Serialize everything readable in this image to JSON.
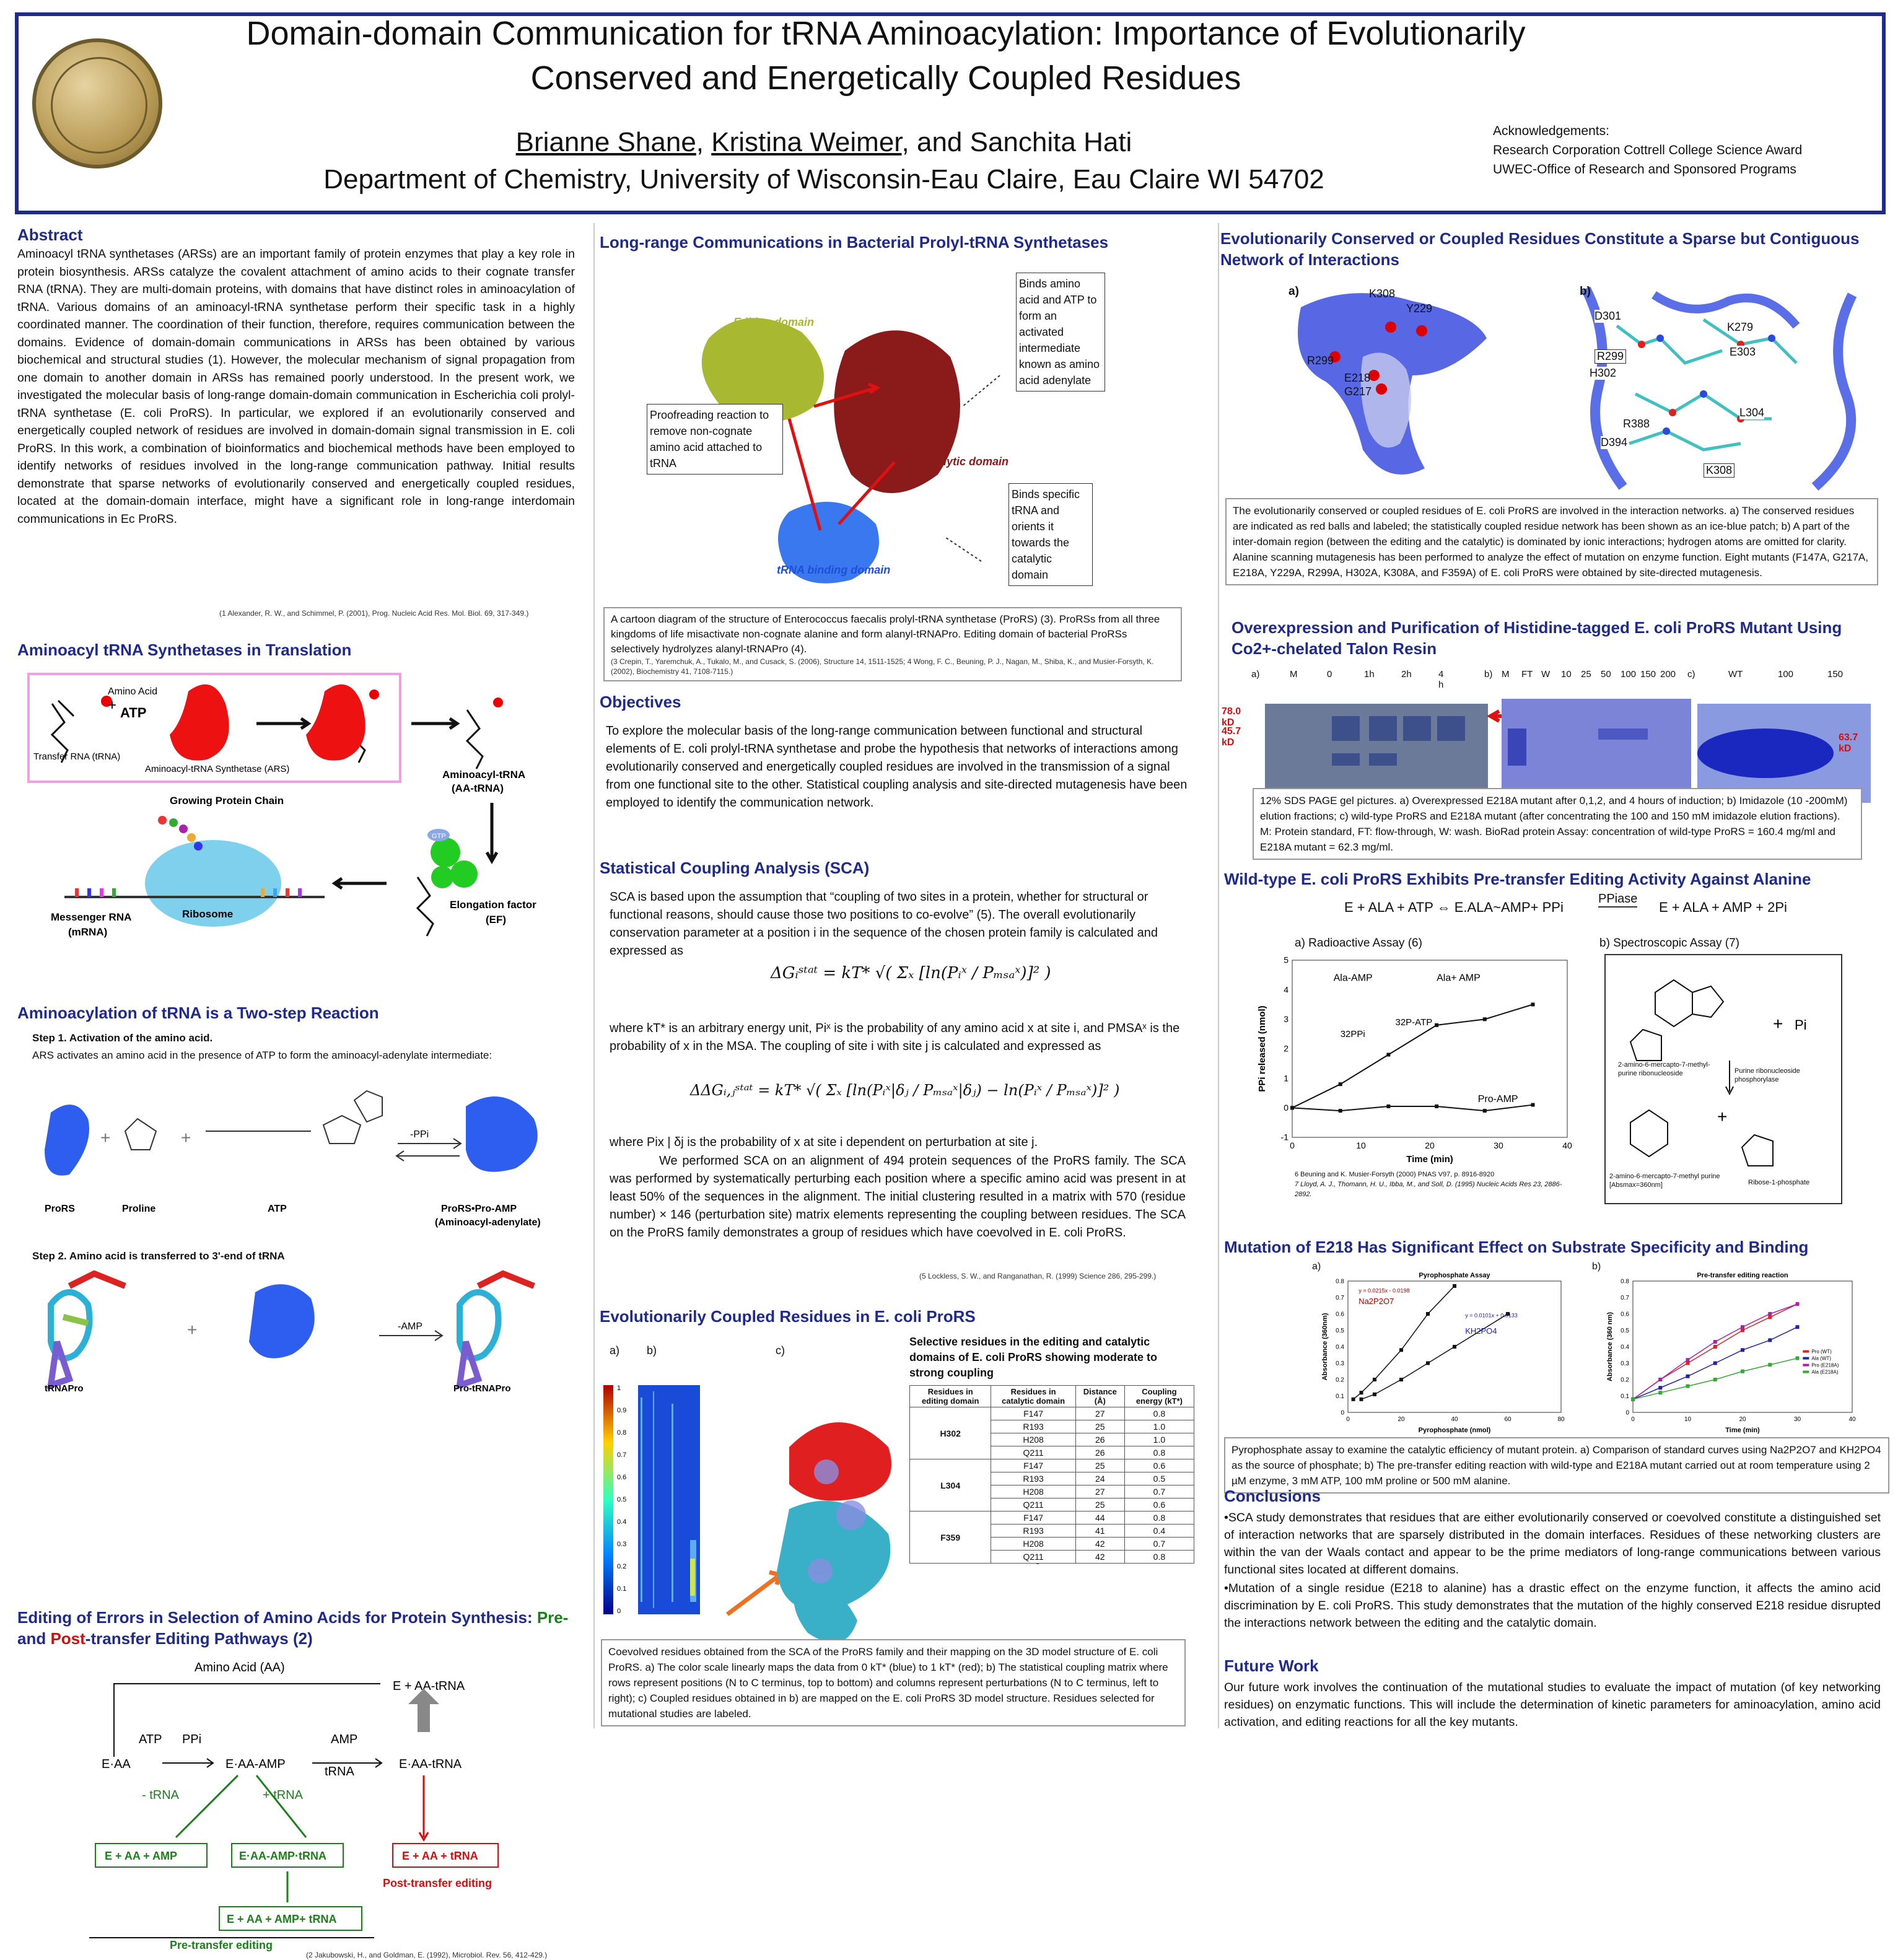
{
  "header": {
    "title": "Domain-domain Communication for tRNA Aminoacylation: Importance of Evolutionarily Conserved and Energetically Coupled Residues",
    "author1": "Brianne Shane",
    "author2": "Kristina Weimer",
    "author3": ", and Sanchita Hati",
    "affiliation": "Department of Chemistry, University of Wisconsin-Eau Claire, Eau Claire WI 54702",
    "ack_title": "Acknowledgements:",
    "ack1": "Research Corporation Cottrell College Science Award",
    "ack2": "UWEC-Office of Research and Sponsored Programs"
  },
  "abstract": {
    "heading": "Abstract",
    "text": "Aminoacyl tRNA synthetases (ARSs) are an important family of protein enzymes that play a key role in protein biosynthesis. ARSs catalyze the covalent attachment of amino acids to their cognate transfer RNA (tRNA). They are multi-domain proteins, with domains that have distinct roles in aminoacylation of tRNA. Various domains of an aminoacyl-tRNA synthetase perform their specific task in a highly coordinated manner. The coordination of their function, therefore, requires communication between the domains. Evidence of domain-domain communications in ARSs has been obtained by various biochemical and structural studies (1). However, the molecular mechanism of signal propagation from one domain to another domain in ARSs has remained poorly understood. In the present work, we investigated the molecular basis of long-range domain-domain communication in Escherichia coli prolyl-tRNA synthetase (E. coli ProRS). In particular, we explored if an evolutionarily conserved and energetically coupled network of residues are involved in domain-domain signal transmission in E. coli ProRS. In this work, a combination of bioinformatics and biochemical methods have been employed to identify networks of residues involved in the long-range communication pathway. Initial results demonstrate that sparse networks of evolutionarily conserved and energetically coupled residues, located at the domain-domain interface, might have a significant role in long-range interdomain communications in Ec ProRS.",
    "ref": "(1 Alexander, R. W., and Schimmel, P. (2001), Prog. Nucleic Acid Res. Mol. Biol. 69, 317-349.)"
  },
  "translation": {
    "heading": "Aminoacyl tRNA Synthetases in Translation",
    "amino_acid": "Amino Acid",
    "atp": "ATP",
    "trna": "Transfer RNA (tRNA)",
    "ars": "Aminoacyl-tRNA Synthetase (ARS)",
    "aa_trna": "Aminoacyl-tRNA",
    "aa_trna2": "(AA-tRNA)",
    "growing": "Growing Protein Chain",
    "ribosome": "Ribosome",
    "mrna": "Messenger RNA",
    "mrna2": "(mRNA)",
    "ef": "Elongation factor",
    "ef2": "(EF)",
    "gtp": "GTP"
  },
  "twostep": {
    "heading": "Aminoacylation of tRNA is a Two-step Reaction",
    "step1": "Step 1. Activation of the amino acid.",
    "step1_desc": "ARS activates an amino acid in the presence of ATP to form the aminoacyl-adenylate intermediate:",
    "prors": "ProRS",
    "proline": "Proline",
    "atp": "ATP",
    "ppi": "-PPi",
    "product": "ProRS•Pro-AMP",
    "product2": "(Aminoacyl-adenylate)",
    "step2": "Step 2. Amino acid is transferred to 3'-end of tRNA",
    "amp": "-AMP",
    "trna_pro": "tRNAPro",
    "pro_trna": "Pro-tRNAPro"
  },
  "editing": {
    "heading_a": "Editing of Errors in Selection of Amino Acids for Protein Synthesis: ",
    "heading_pre": "Pre-",
    "heading_b": " and ",
    "heading_post": "Post",
    "heading_c": "-transfer Editing Pathways (2)",
    "aa": "Amino Acid (AA)",
    "e_aa_trna_top": "E + AA-tRNA",
    "e_aa": "E·AA",
    "atp": "ATP",
    "ppi": "PPi",
    "e_aa_amp": "E·AA-AMP",
    "amp": "AMP",
    "trna": "tRNA",
    "e_aa_trna": "E·AA-tRNA",
    "minus_trna": "- tRNA",
    "plus_trna": "+ tRNA",
    "box1": "E + AA + AMP",
    "box2": "E·AA-AMP·tRNA",
    "box3": "E + AA + tRNA",
    "post": "Post-transfer editing",
    "box4": "E + AA + AMP+ tRNA",
    "pre": "Pre-transfer editing",
    "ref": "(2 Jakubowski, H., and Goldman, E. (1992), Microbiol. Rev. 56, 412-429.)"
  },
  "longrange": {
    "heading": "Long-range Communications in Bacterial Prolyl-tRNA Synthetases",
    "editing_domain": "Editing domain",
    "catalytic_domain": "Catalytic domain",
    "trna_domain": "tRNA binding domain",
    "box_proof": "Proofreading reaction to remove non-cognate amino acid attached to tRNA",
    "box_binds_amino": "Binds amino acid and ATP to form an activated intermediate known as amino acid adenylate",
    "box_binds_trna": "Binds specific tRNA and orients it towards the catalytic domain",
    "caption": "A cartoon diagram of the structure of Enterococcus faecalis prolyl-tRNA synthetase (ProRS) (3). ProRSs from all three kingdoms of life misactivate non-cognate alanine and form alanyl-tRNAPro. Editing domain of bacterial ProRSs selectively hydrolyzes alanyl-tRNAPro (4).",
    "ref": "(3 Crepin, T., Yaremchuk, A., Tukalo, M., and Cusack, S. (2006), Structure 14, 1511-1525; 4 Wong, F. C., Beuning, P. J., Nagan, M., Shiba, K., and Musier-Forsyth, K. (2002), Biochemistry 41, 7108-7115.)"
  },
  "objectives": {
    "heading": "Objectives",
    "text": "To explore the molecular basis of the long-range communication between functional and structural elements of E. coli prolyl-tRNA synthetase and probe the hypothesis that networks of interactions among evolutionarily conserved and energetically coupled residues are involved in the transmission of a signal from one functional site to the other. Statistical coupling analysis and site-directed mutagenesis have been employed to identify the communication network."
  },
  "sca": {
    "heading": "Statistical Coupling Analysis (SCA)",
    "p1": "SCA is based upon the assumption that “coupling of two sites in a protein, whether for structural or functional reasons, should cause those two positions to co-evolve” (5). The overall evolutionarily conservation parameter at a position i in the sequence of the chosen protein family is calculated and expressed as",
    "eq1": "ΔGᵢˢᵗᵃᵗ = kT* √( Σₓ [ln(Pᵢˣ / Pₘₛₐˣ)]² )",
    "p2": "where kT* is an arbitrary energy unit, Piˣ is the probability of any amino acid x at site i, and PMSAˣ is the probability of x in the MSA. The coupling of site i with site j is calculated and expressed as",
    "eq2": "ΔΔGᵢ,ⱼˢᵗᵃᵗ = kT* √( Σₓ [ln(Pᵢˣ|δⱼ / Pₘₛₐˣ|δⱼ) − ln(Pᵢˣ / Pₘₛₐˣ)]² )",
    "p3": "where Pix | δj is the probability of x at site i dependent on perturbation at site j.",
    "p4": "We performed SCA on an alignment of 494 protein sequences of the ProRS family. The SCA was performed by systematically perturbing each position where a specific amino acid  was present in at least 50%  of the sequences in the alignment. The initial clustering resulted in a matrix with 570 (residue number) × 146 (perturbation site) matrix elements representing the coupling between residues. The SCA on the ProRS family demonstrates a group of residues which have coevolved in E. coli ProRS.",
    "ref": "(5 Lockless, S. W., and Ranganathan, R. (1999) Science 286, 295-299.)"
  },
  "coupled": {
    "heading": "Evolutionarily Coupled Residues in E. coli ProRS",
    "la": "a)",
    "lb": "b)",
    "lc": "c)",
    "colorbar_ticks": [
      "1",
      "0.9",
      "0.8",
      "0.7",
      "0.6",
      "0.5",
      "0.4",
      "0.3",
      "0.2",
      "0.1",
      "0"
    ],
    "labels": [
      "F359",
      "H302",
      "L304",
      "R193",
      "F147",
      "H208",
      "Q211"
    ],
    "table_title": "Selective residues in the editing and catalytic domains of E. coli ProRS showing moderate to strong coupling",
    "col_headers": [
      "Residues in editing domain",
      "Residues in catalytic domain",
      "Distance (Å)",
      "Coupling energy (kT*)"
    ],
    "groups": [
      {
        "res": "H302",
        "rows": [
          [
            "F147",
            "27",
            "0.8"
          ],
          [
            "R193",
            "25",
            "1.0"
          ],
          [
            "H208",
            "26",
            "1.0"
          ],
          [
            "Q211",
            "26",
            "0.8"
          ]
        ]
      },
      {
        "res": "L304",
        "rows": [
          [
            "F147",
            "25",
            "0.6"
          ],
          [
            "R193",
            "24",
            "0.5"
          ],
          [
            "H208",
            "27",
            "0.7"
          ],
          [
            "Q211",
            "25",
            "0.6"
          ]
        ]
      },
      {
        "res": "F359",
        "rows": [
          [
            "F147",
            "44",
            "0.8"
          ],
          [
            "R193",
            "41",
            "0.4"
          ],
          [
            "H208",
            "42",
            "0.7"
          ],
          [
            "Q211",
            "42",
            "0.8"
          ]
        ]
      }
    ],
    "caption": "Coevolved residues obtained from the SCA of the ProRS family and their mapping on the 3D model structure of E. coli ProRS. a) The color scale linearly maps the data from 0 kT* (blue) to 1 kT* (red); b) The statistical coupling matrix where rows represent positions (N to C terminus, top to bottom) and columns represent perturbations (N to C terminus, left to right); c) Coupled residues obtained in b) are mapped on the E. coli ProRS 3D model structure. Residues selected for mutational studies are labeled."
  },
  "network": {
    "heading": "Evolutionarily Conserved or Coupled Residues Constitute a Sparse but Contiguous Network of Interactions",
    "la": "a)",
    "lb": "b)",
    "labels_a": [
      "K308",
      "Y229",
      "R299",
      "E218",
      "G217"
    ],
    "labels_b": [
      "D301",
      "K279",
      "R299",
      "E303",
      "H302",
      "R388",
      "L304",
      "D394",
      "K308"
    ],
    "caption": "The evolutionarily conserved or coupled residues of E. coli ProRS are involved in the interaction networks. a) The conserved residues are indicated as red balls and labeled; the statistically coupled residue network has been shown as an ice-blue patch; b) A part of the inter-domain region (between the editing and the catalytic) is dominated by ionic interactions; hydrogen atoms are omitted for clarity. Alanine scanning mutagenesis has been performed to analyze the effect of mutation on enzyme function. Eight mutants (F147A, G217A, E218A, Y229A, R299A, H302A, K308A, and F359A) of E. coli ProRS were obtained by site-directed mutagenesis."
  },
  "overexpression": {
    "heading": "Overexpression and Purification of Histidine-tagged E. coli ProRS Mutant Using Co2+-chelated Talon Resin",
    "la": "a)",
    "lb": "b)",
    "lc": "c)",
    "lanes_a": [
      "M",
      "0",
      "1h",
      "2h",
      "4 h"
    ],
    "lanes_b": [
      "M",
      "FT",
      "W",
      "10",
      "25",
      "50",
      "100",
      "150",
      "200"
    ],
    "lanes_c": [
      "WT",
      "100",
      "150"
    ],
    "kd1": "78.0 kD",
    "kd2": "45.7 kD",
    "kd3": "63.7 kD",
    "caption": "12% SDS PAGE gel pictures. a) Overexpressed E218A mutant after 0,1,2, and 4 hours of induction; b) Imidazole (10 -200mM) elution fractions; c) wild-type ProRS and E218A mutant (after concentrating the 100 and 150 mM imidazole elution fractions). M: Protein standard, FT: flow-through, W: wash. BioRad protein Assay: concentration of wild-type ProRS = 160.4 mg/ml and E218A mutant = 62.3 mg/ml."
  },
  "wildtype": {
    "heading": "Wild-type E. coli ProRS Exhibits Pre-transfer Editing Activity Against Alanine",
    "eq_left": "E + ALA + ATP ⇔ E.ALA~AMP+ PPi",
    "eq_enzyme": "PPiase",
    "eq_right": "E + ALA + AMP + 2Pi",
    "a_label": "a) Radioactive Assay (6)",
    "b_label": "b) Spectroscopic Assay (7)",
    "ref6": "6 Beuning and K. Musier-Forsyth (2000) PNAS V97, p. 8916-8920",
    "ref7": "7 Lloyd, A. J., Thomann, H. U., Ibba, M., and Soll, D. (1995) Nucleic Acids Res 23, 2886-2892.",
    "mol1": "2-amino-6-mercapto-7-methyl-purine ribonucleoside",
    "pi": "Pi",
    "enzyme": "Purine ribonucleoside phosphorylase",
    "mol2": "2-amino-6-mercapto-7-methyl purine [Absmax=360nm]",
    "mol3": "Ribose-1-phosphate"
  },
  "radio_chart": {
    "chart_data": {
      "type": "scatter",
      "xlabel": "Time (min)",
      "ylabel": "PPi released (nmol)",
      "xlim": [
        0,
        40
      ],
      "ylim": [
        -1,
        5
      ],
      "xticks": [
        "0",
        "10",
        "20",
        "30",
        "40"
      ],
      "yticks": [
        "5",
        "4",
        "3",
        "2",
        "1",
        "0",
        "-1"
      ],
      "series": [
        {
          "name": "Ala+ AMP",
          "x": [
            0,
            7,
            14,
            21,
            28,
            35
          ],
          "y": [
            0,
            0.8,
            1.8,
            2.8,
            3.0,
            3.5
          ]
        },
        {
          "name": "Pro-AMP",
          "x": [
            0,
            7,
            14,
            21,
            28,
            35
          ],
          "y": [
            0,
            -0.1,
            0.05,
            0.05,
            -0.1,
            0.1
          ]
        }
      ],
      "annotations": [
        "Ala-AMP",
        "32PPi",
        "32P-ATP"
      ]
    }
  },
  "mutation": {
    "heading": "Mutation of E218  Has Significant Effect on Substrate Specificity and Binding",
    "la": "a)",
    "lb": "b)",
    "chart_a_title": "Pyrophosphate Assay",
    "chart_b_title": "Pre-transfer editing reaction",
    "caption": "Pyrophosphate assay to examine the catalytic efficiency of mutant protein. a) Comparison of standard curves using Na2P2O7 and KH2PO4 as the source of phosphate; b) The pre-transfer editing reaction with wild-type and E218A mutant carried out at room temperature using 2 µM enzyme, 3 mM ATP, 100 mM proline or 500 mM alanine."
  },
  "pyro_chart": {
    "chart_data": {
      "type": "line",
      "title": "Pyrophosphate Assay",
      "xlabel": "Pyrophosphate (nmol)",
      "ylabel": "Absorbance (360nm)",
      "xlim": [
        0,
        80
      ],
      "ylim": [
        0,
        0.8
      ],
      "xticks": [
        "0",
        "20",
        "40",
        "60",
        "80"
      ],
      "yticks": [
        "0.8",
        "0.7",
        "0.6",
        "0.5",
        "0.4",
        "0.3",
        "0.2",
        "0.1",
        "0"
      ],
      "series": [
        {
          "name": "Na2P2O7",
          "x": [
            2,
            5,
            10,
            20,
            30,
            40
          ],
          "y": [
            0.08,
            0.12,
            0.2,
            0.38,
            0.6,
            0.77
          ]
        },
        {
          "name": "KH2PO4",
          "x": [
            5,
            10,
            20,
            30,
            40,
            60
          ],
          "y": [
            0.08,
            0.11,
            0.2,
            0.3,
            0.4,
            0.6
          ]
        }
      ],
      "annotations": [
        "y = 0.0215x - 0.0198",
        "y = 0.0101x + 0.0133"
      ]
    }
  },
  "edit_chart": {
    "chart_data": {
      "type": "line",
      "title": "Pre-transfer editing reaction",
      "xlabel": "Time (min)",
      "ylabel": "Absorbance (360 nm)",
      "xlim": [
        0,
        40
      ],
      "ylim": [
        0,
        0.8
      ],
      "xticks": [
        "0",
        "10",
        "20",
        "30",
        "40"
      ],
      "yticks": [
        "0.8",
        "0.7",
        "0.6",
        "0.5",
        "0.4",
        "0.3",
        "0.2",
        "0.1",
        "0"
      ],
      "series": [
        {
          "name": "Pro (WT)",
          "x": [
            0,
            5,
            10,
            15,
            20,
            25,
            30
          ],
          "y": [
            0.08,
            0.2,
            0.3,
            0.4,
            0.5,
            0.58,
            0.66
          ]
        },
        {
          "name": "Ala (WT)",
          "x": [
            0,
            5,
            10,
            15,
            20,
            25,
            30
          ],
          "y": [
            0.08,
            0.15,
            0.22,
            0.3,
            0.38,
            0.44,
            0.52
          ]
        },
        {
          "name": "Pro (E218A)",
          "x": [
            0,
            5,
            10,
            15,
            20,
            25,
            30
          ],
          "y": [
            0.08,
            0.2,
            0.32,
            0.43,
            0.52,
            0.6,
            0.66
          ]
        },
        {
          "name": "Ala (E218A)",
          "x": [
            0,
            5,
            10,
            15,
            20,
            25,
            30
          ],
          "y": [
            0.08,
            0.12,
            0.16,
            0.2,
            0.25,
            0.29,
            0.33
          ]
        }
      ],
      "colors": [
        "#d22",
        "#22a",
        "#a2a",
        "#3a3"
      ]
    }
  },
  "conclusions": {
    "heading": "Conclusions",
    "b1": "•SCA study demonstrates that residues that are either evolutionarily conserved or coevolved constitute a distinguished set of interaction networks that are sparsely distributed in the domain interfaces. Residues of these networking clusters are within the van der Waals contact and appear to be the prime mediators of long-range communications between various functional sites located at different domains.",
    "b2": "•Mutation of a single residue (E218 to alanine) has a drastic effect on the enzyme function, it affects the amino acid discrimination by E. coli ProRS. This study demonstrates that the mutation of the highly conserved E218 residue disrupted the interactions network between the editing and the catalytic domain."
  },
  "future": {
    "heading": "Future Work",
    "text": "Our future work involves the continuation of the mutational studies to evaluate the impact of mutation (of key networking residues) on enzymatic functions. This will include the determination of kinetic parameters for aminoacylation, amino acid activation, and editing reactions for all the key mutants."
  }
}
